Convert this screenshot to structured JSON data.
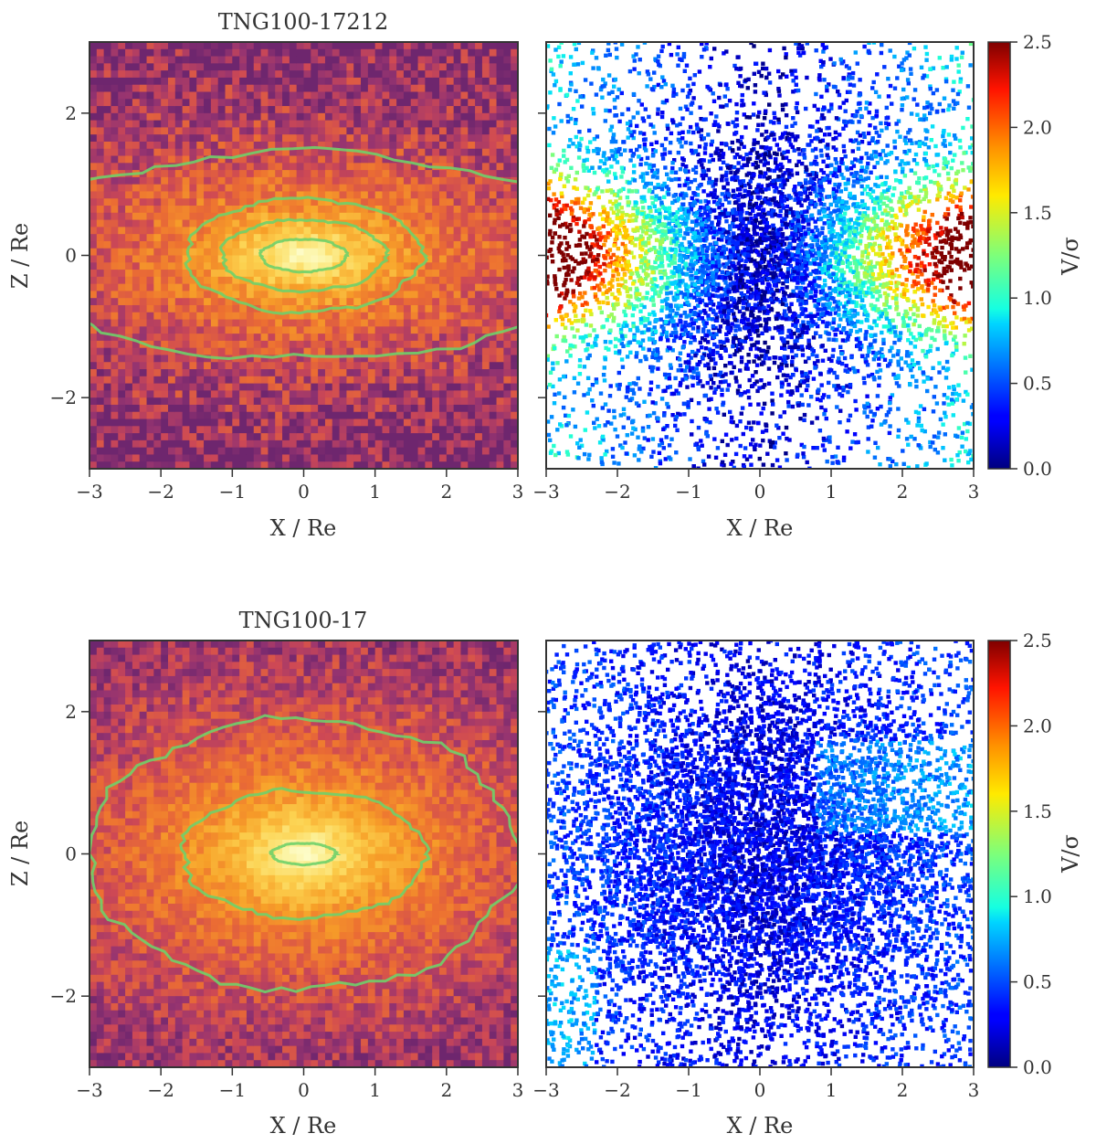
{
  "chart_data": [
    {
      "type": "heatmap",
      "title": "TNG100-17212",
      "xlabel": "X / Re",
      "ylabel": "Z / Re",
      "xlim": [
        -3,
        3
      ],
      "ylim": [
        -3,
        3
      ],
      "xticks": [
        "−3",
        "−2",
        "−1",
        "0",
        "1",
        "2",
        "3"
      ],
      "yticks": [
        "−2",
        "0",
        "2"
      ],
      "colormap": "inferno-like (purple → orange → pale yellow)",
      "contour_color": "#6fd06a",
      "contours": [
        {
          "level": "inner",
          "ax": 0.6,
          "az": 0.23
        },
        {
          "level": "second",
          "ax": 1.15,
          "az": 0.5
        },
        {
          "level": "third",
          "ax": 1.65,
          "az": 0.8
        },
        {
          "level": "outer",
          "ax": 4.2,
          "az": 1.45
        }
      ],
      "structure": "flattened stellar density, axis ratio ~0.45"
    },
    {
      "type": "scatter",
      "xlabel": "X / Re",
      "xlim": [
        -3,
        3
      ],
      "ylim": [
        -3,
        3
      ],
      "xticks": [
        "−3",
        "−2",
        "−1",
        "0",
        "1",
        "2",
        "3"
      ],
      "colorbar": {
        "label": "V/σ",
        "min": 0.0,
        "max": 2.5,
        "ticks": [
          "0.0",
          "0.5",
          "1.0",
          "1.5",
          "2.0",
          "2.5"
        ],
        "colormap": "jet"
      },
      "pattern": "strong rotation along the major axis: V/σ > 2.3 near |X| > 2, |Z| < 1; low V/σ (<0.4) along the minor axis X ≈ 0"
    },
    {
      "type": "heatmap",
      "title": "TNG100-17",
      "xlabel": "X / Re",
      "ylabel": "Z / Re",
      "xlim": [
        -3,
        3
      ],
      "ylim": [
        -3,
        3
      ],
      "xticks": [
        "−3",
        "−2",
        "−1",
        "0",
        "1",
        "2",
        "3"
      ],
      "yticks": [
        "−2",
        "0",
        "2"
      ],
      "colormap": "inferno-like (purple → orange → pale yellow)",
      "contour_color": "#6fd06a",
      "contours": [
        {
          "level": "inner",
          "ax": 0.45,
          "az": 0.15
        },
        {
          "level": "middle",
          "ax": 1.7,
          "az": 0.9
        },
        {
          "level": "outer",
          "ax": 3.0,
          "az": 1.9
        }
      ],
      "structure": "rounder stellar density, axis ratio ~0.6"
    },
    {
      "type": "scatter",
      "xlabel": "X / Re",
      "xlim": [
        -3,
        3
      ],
      "ylim": [
        -3,
        3
      ],
      "xticks": [
        "−3",
        "−2",
        "−1",
        "0",
        "1",
        "2",
        "3"
      ],
      "colorbar": {
        "label": "V/σ",
        "min": 0.0,
        "max": 2.5,
        "ticks": [
          "0.0",
          "0.5",
          "1.0",
          "1.5",
          "2.0",
          "2.5"
        ],
        "colormap": "jet"
      },
      "pattern": "slow rotator: V/σ mostly 0.0–0.6 everywhere, a few patches up to ~0.8"
    }
  ]
}
